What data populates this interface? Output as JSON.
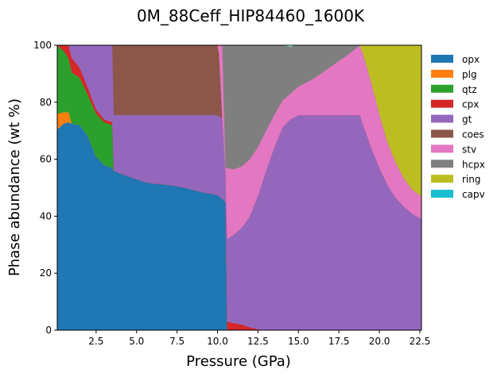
{
  "chart_data": {
    "type": "area",
    "title": "0M_88Ceff_HIP84460_1600K",
    "xlabel": "Pressure (GPa)",
    "ylabel": "Phase abundance (wt %)",
    "xlim": [
      0.1,
      22.6
    ],
    "ylim": [
      0,
      100
    ],
    "xticks": [
      2.5,
      5.0,
      7.5,
      10.0,
      12.5,
      15.0,
      17.5,
      20.0,
      22.5
    ],
    "xtick_labels": [
      "2.5",
      "5.0",
      "7.5",
      "10.0",
      "12.5",
      "15.0",
      "17.5",
      "20.0",
      "22.5"
    ],
    "yticks": [
      0,
      20,
      40,
      60,
      80,
      100
    ],
    "ytick_labels": [
      "0",
      "20",
      "40",
      "60",
      "80",
      "100"
    ],
    "legend_position": "outside-right",
    "grid": false,
    "x": [
      0.1,
      0.5,
      0.8,
      1.0,
      1.5,
      2.0,
      2.5,
      3.0,
      3.5,
      3.6,
      4.0,
      4.5,
      5.0,
      5.5,
      6.0,
      7.0,
      8.0,
      9.0,
      10.0,
      10.1,
      10.3,
      10.5,
      10.6,
      11.0,
      11.5,
      12.0,
      12.5,
      13.0,
      13.5,
      14.0,
      14.5,
      15.0,
      16.0,
      17.0,
      18.0,
      18.8,
      19.0,
      19.5,
      20.0,
      20.5,
      21.0,
      21.5,
      22.0,
      22.6
    ],
    "series": [
      {
        "name": "opx",
        "color": "#1f77b4",
        "values": [
          70.5,
          72.5,
          73.0,
          72.5,
          72.0,
          68.0,
          61.0,
          58.0,
          57.0,
          56.0,
          55.0,
          54.0,
          53.0,
          52.0,
          51.5,
          51.0,
          50.0,
          48.5,
          47.5,
          47.0,
          46.0,
          45.0,
          0,
          0,
          0,
          0,
          0,
          0,
          0,
          0,
          0,
          0,
          0,
          0,
          0,
          0,
          0,
          0,
          0,
          0,
          0,
          0,
          0,
          0
        ]
      },
      {
        "name": "plg",
        "color": "#ff7f0e",
        "values": [
          5.5,
          4.0,
          3.5,
          0,
          0,
          0,
          0,
          0,
          0,
          0,
          0,
          0,
          0,
          0,
          0,
          0,
          0,
          0,
          0,
          0,
          0,
          0,
          0,
          0,
          0,
          0,
          0,
          0,
          0,
          0,
          0,
          0,
          0,
          0,
          0,
          0,
          0,
          0,
          0,
          0,
          0,
          0,
          0,
          0
        ]
      },
      {
        "name": "qtz",
        "color": "#2ca02c",
        "values": [
          24.0,
          21.5,
          19.0,
          18.0,
          16.5,
          14.5,
          15.0,
          15.0,
          15.0,
          0,
          0,
          0,
          0,
          0,
          0,
          0,
          0,
          0,
          0,
          0,
          0,
          0,
          0,
          0,
          0,
          0,
          0,
          0,
          0,
          0,
          0,
          0,
          0,
          0,
          0,
          0,
          0,
          0,
          0,
          0,
          0,
          0,
          0,
          0
        ]
      },
      {
        "name": "cpx",
        "color": "#d62728",
        "values": [
          0,
          2.0,
          4.5,
          5.0,
          3.5,
          2.5,
          1.5,
          1.0,
          1.0,
          0,
          0,
          0,
          0,
          0,
          0,
          0,
          0,
          0,
          0,
          0,
          0,
          0,
          3.0,
          2.5,
          2.0,
          1.0,
          0.3,
          0,
          0,
          0,
          0,
          0,
          0,
          0,
          0,
          0,
          0,
          0,
          0,
          0,
          0,
          0,
          0,
          0
        ]
      },
      {
        "name": "gt",
        "color": "#9467bd",
        "values": [
          0,
          0,
          0,
          4.5,
          8.0,
          15.0,
          22.5,
          26.0,
          27.0,
          19.5,
          20.5,
          21.5,
          22.5,
          23.5,
          24.0,
          24.5,
          25.5,
          27.0,
          28.0,
          28.0,
          28.5,
          10.0,
          29.0,
          31.0,
          34.0,
          39.0,
          47.0,
          56.0,
          64.0,
          71.0,
          74.0,
          75.5,
          75.5,
          75.5,
          75.5,
          75.5,
          72.0,
          64.0,
          57.0,
          51.0,
          46.5,
          43.5,
          41.0,
          39.0
        ]
      },
      {
        "name": "coes",
        "color": "#8c564b",
        "values": [
          0,
          0,
          0,
          0,
          0,
          0,
          0,
          0,
          0,
          24.5,
          24.5,
          24.5,
          24.5,
          24.5,
          24.5,
          24.5,
          24.5,
          24.5,
          24.5,
          22.0,
          0,
          0,
          0,
          0,
          0,
          0,
          0,
          0,
          0,
          0,
          0,
          0,
          0,
          0,
          0,
          0,
          0,
          0,
          0,
          0,
          0,
          0,
          0,
          0
        ]
      },
      {
        "name": "stv",
        "color": "#e377c2",
        "values": [
          0,
          0,
          0,
          0,
          0,
          0,
          0,
          0,
          0,
          0,
          0,
          0,
          0,
          0,
          0,
          0,
          0,
          0,
          0,
          3.0,
          25.5,
          2.0,
          25.0,
          23.0,
          21.5,
          20.0,
          17.0,
          14.0,
          11.5,
          9.5,
          9.0,
          10.0,
          13.0,
          17.0,
          21.0,
          24.5,
          25.0,
          23.0,
          19.0,
          15.0,
          12.5,
          10.0,
          8.5,
          8.0
        ]
      },
      {
        "name": "hcpx",
        "color": "#7f7f7f",
        "values": [
          0,
          0,
          0,
          0,
          0,
          0,
          0,
          0,
          0,
          0,
          0,
          0,
          0,
          0,
          0,
          0,
          0,
          0,
          0,
          0,
          0,
          43.0,
          43.0,
          43.5,
          42.5,
          40.0,
          35.7,
          30.0,
          24.5,
          19.5,
          16.5,
          14.5,
          11.5,
          7.5,
          3.5,
          0,
          0,
          0,
          0,
          0,
          0,
          0,
          0,
          0
        ]
      },
      {
        "name": "ring",
        "color": "#bcbd22",
        "values": [
          0,
          0,
          0,
          0,
          0,
          0,
          0,
          0,
          0,
          0,
          0,
          0,
          0,
          0,
          0,
          0,
          0,
          0,
          0,
          0,
          0,
          0,
          0,
          0,
          0,
          0,
          0,
          0,
          0,
          0,
          0,
          0,
          0,
          0,
          0,
          0,
          3.0,
          13.0,
          24.0,
          34.0,
          41.0,
          46.5,
          50.5,
          53.0
        ]
      },
      {
        "name": "capv",
        "color": "#17becf",
        "values": [
          0,
          0,
          0,
          0,
          0,
          0,
          0,
          0,
          0,
          0,
          0,
          0,
          0,
          0,
          0,
          0,
          0,
          0,
          0,
          0,
          0,
          0,
          0,
          0,
          0,
          0,
          0,
          0,
          0,
          0,
          0,
          0,
          0,
          0,
          0,
          0,
          0,
          0,
          0,
          0,
          0,
          0,
          0,
          0
        ]
      }
    ]
  }
}
